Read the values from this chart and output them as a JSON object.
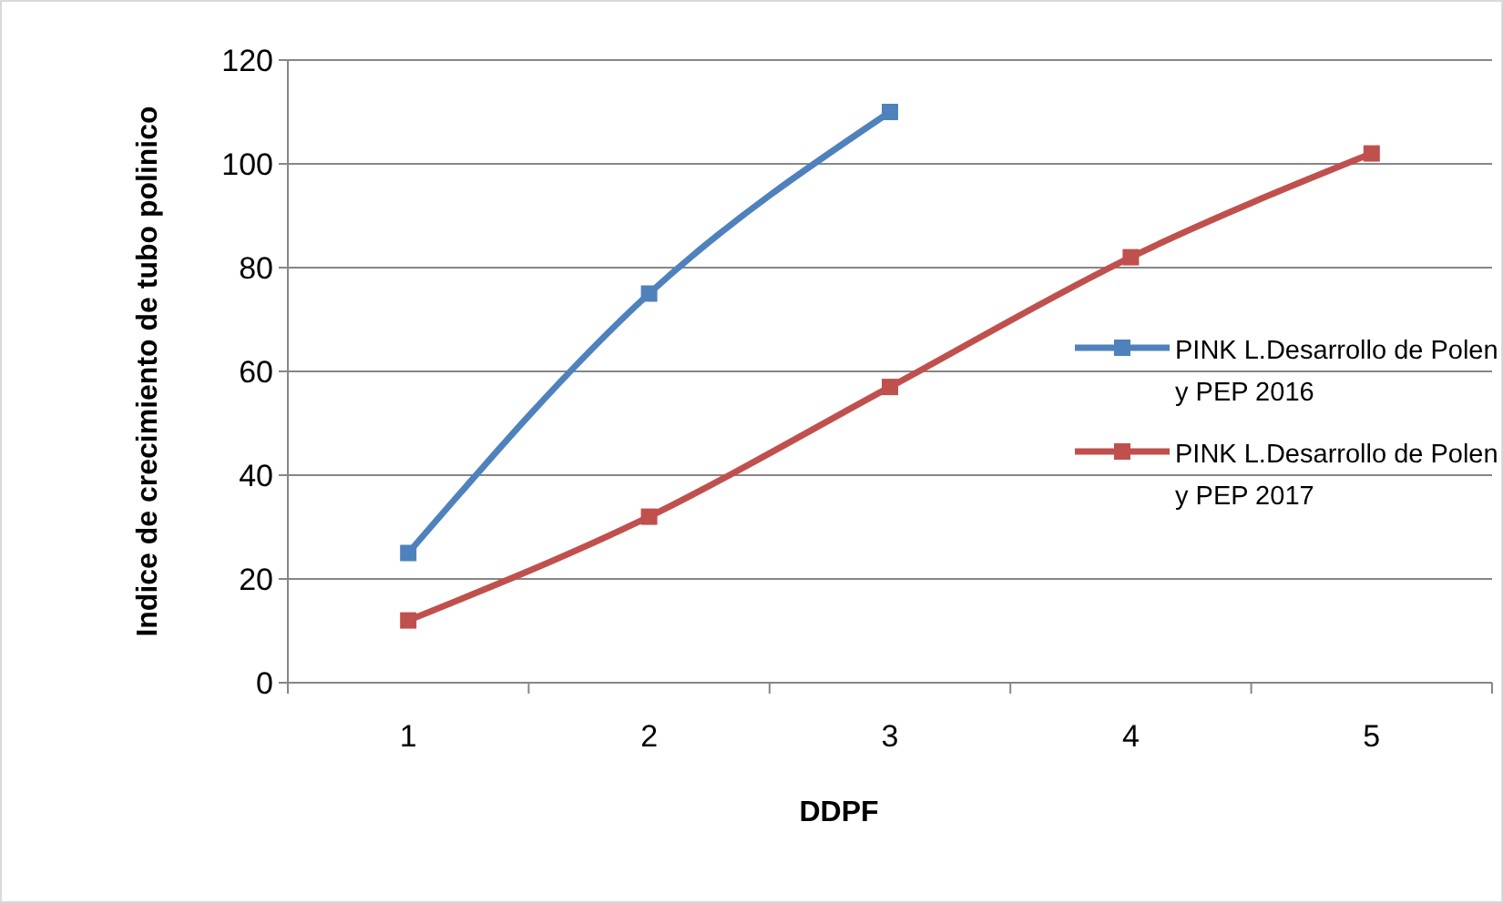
{
  "chart_data": {
    "type": "line",
    "xlabel": "DDPF",
    "ylabel": "Indice de crecimiento de tubo polinico",
    "categories": [
      "1",
      "2",
      "3",
      "4",
      "5"
    ],
    "series": [
      {
        "name": "PINK L.Desarrollo de Polen y PEP 2016",
        "color": "#4f81bd",
        "values": [
          25,
          75,
          110,
          null,
          null
        ]
      },
      {
        "name": "PINK L.Desarrollo de Polen y PEP 2017",
        "color": "#c0504d",
        "values": [
          12,
          32,
          57,
          82,
          102
        ]
      }
    ],
    "ylim": [
      0,
      120
    ],
    "yticks": [
      0,
      20,
      40,
      60,
      80,
      100,
      120
    ],
    "grid": "y",
    "legend": "right",
    "marker": "square",
    "line_style": "solid"
  }
}
